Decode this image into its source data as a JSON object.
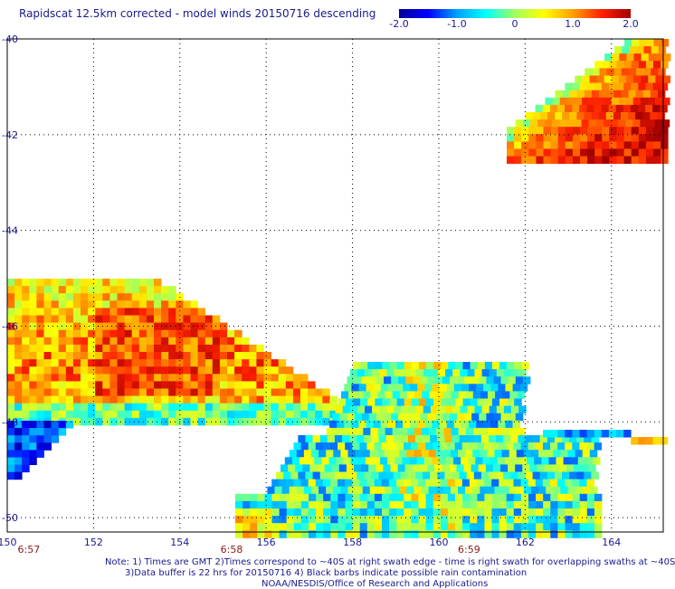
{
  "title": "Rapidscat 12.5km corrected - model winds 20150716 descending",
  "colorbar": {
    "labels": [
      "-2.0",
      "-1.0",
      "0",
      "1.0",
      "2.0"
    ],
    "values": [
      -2.0,
      -1.0,
      0,
      1.0,
      2.0
    ],
    "colors": [
      "#00009a",
      "#0000ff",
      "#00a0ff",
      "#00ffff",
      "#a0ff60",
      "#ffff00",
      "#ffa000",
      "#ff2000",
      "#a00000"
    ]
  },
  "map": {
    "lon_labels": [
      "150",
      "152",
      "154",
      "156",
      "158",
      "160",
      "162",
      "164"
    ],
    "lat_labels": [
      "-40",
      "-42",
      "-44",
      "-46",
      "-48",
      "-50"
    ],
    "time_labels": [
      {
        "text": "6:57",
        "lon": 150.5
      },
      {
        "text": "6:58",
        "lon": 155.2
      },
      {
        "text": "6:59",
        "lon": 160.7
      }
    ]
  },
  "notes": {
    "line1": "Note: 1) Times are GMT 2)Times correspond to ~40S at right swath edge - time is right swath for overlapping swaths at ~40S",
    "line2": "3)Data buffer is 22 hrs for 20150716 4) Black barbs indicate possible rain contamination",
    "line3": "NOAA/NESDIS/Office of Research and Applications"
  },
  "colors": {
    "text": "#1a1a8c",
    "time": "#8b1a1a",
    "grid": "#000000"
  }
}
